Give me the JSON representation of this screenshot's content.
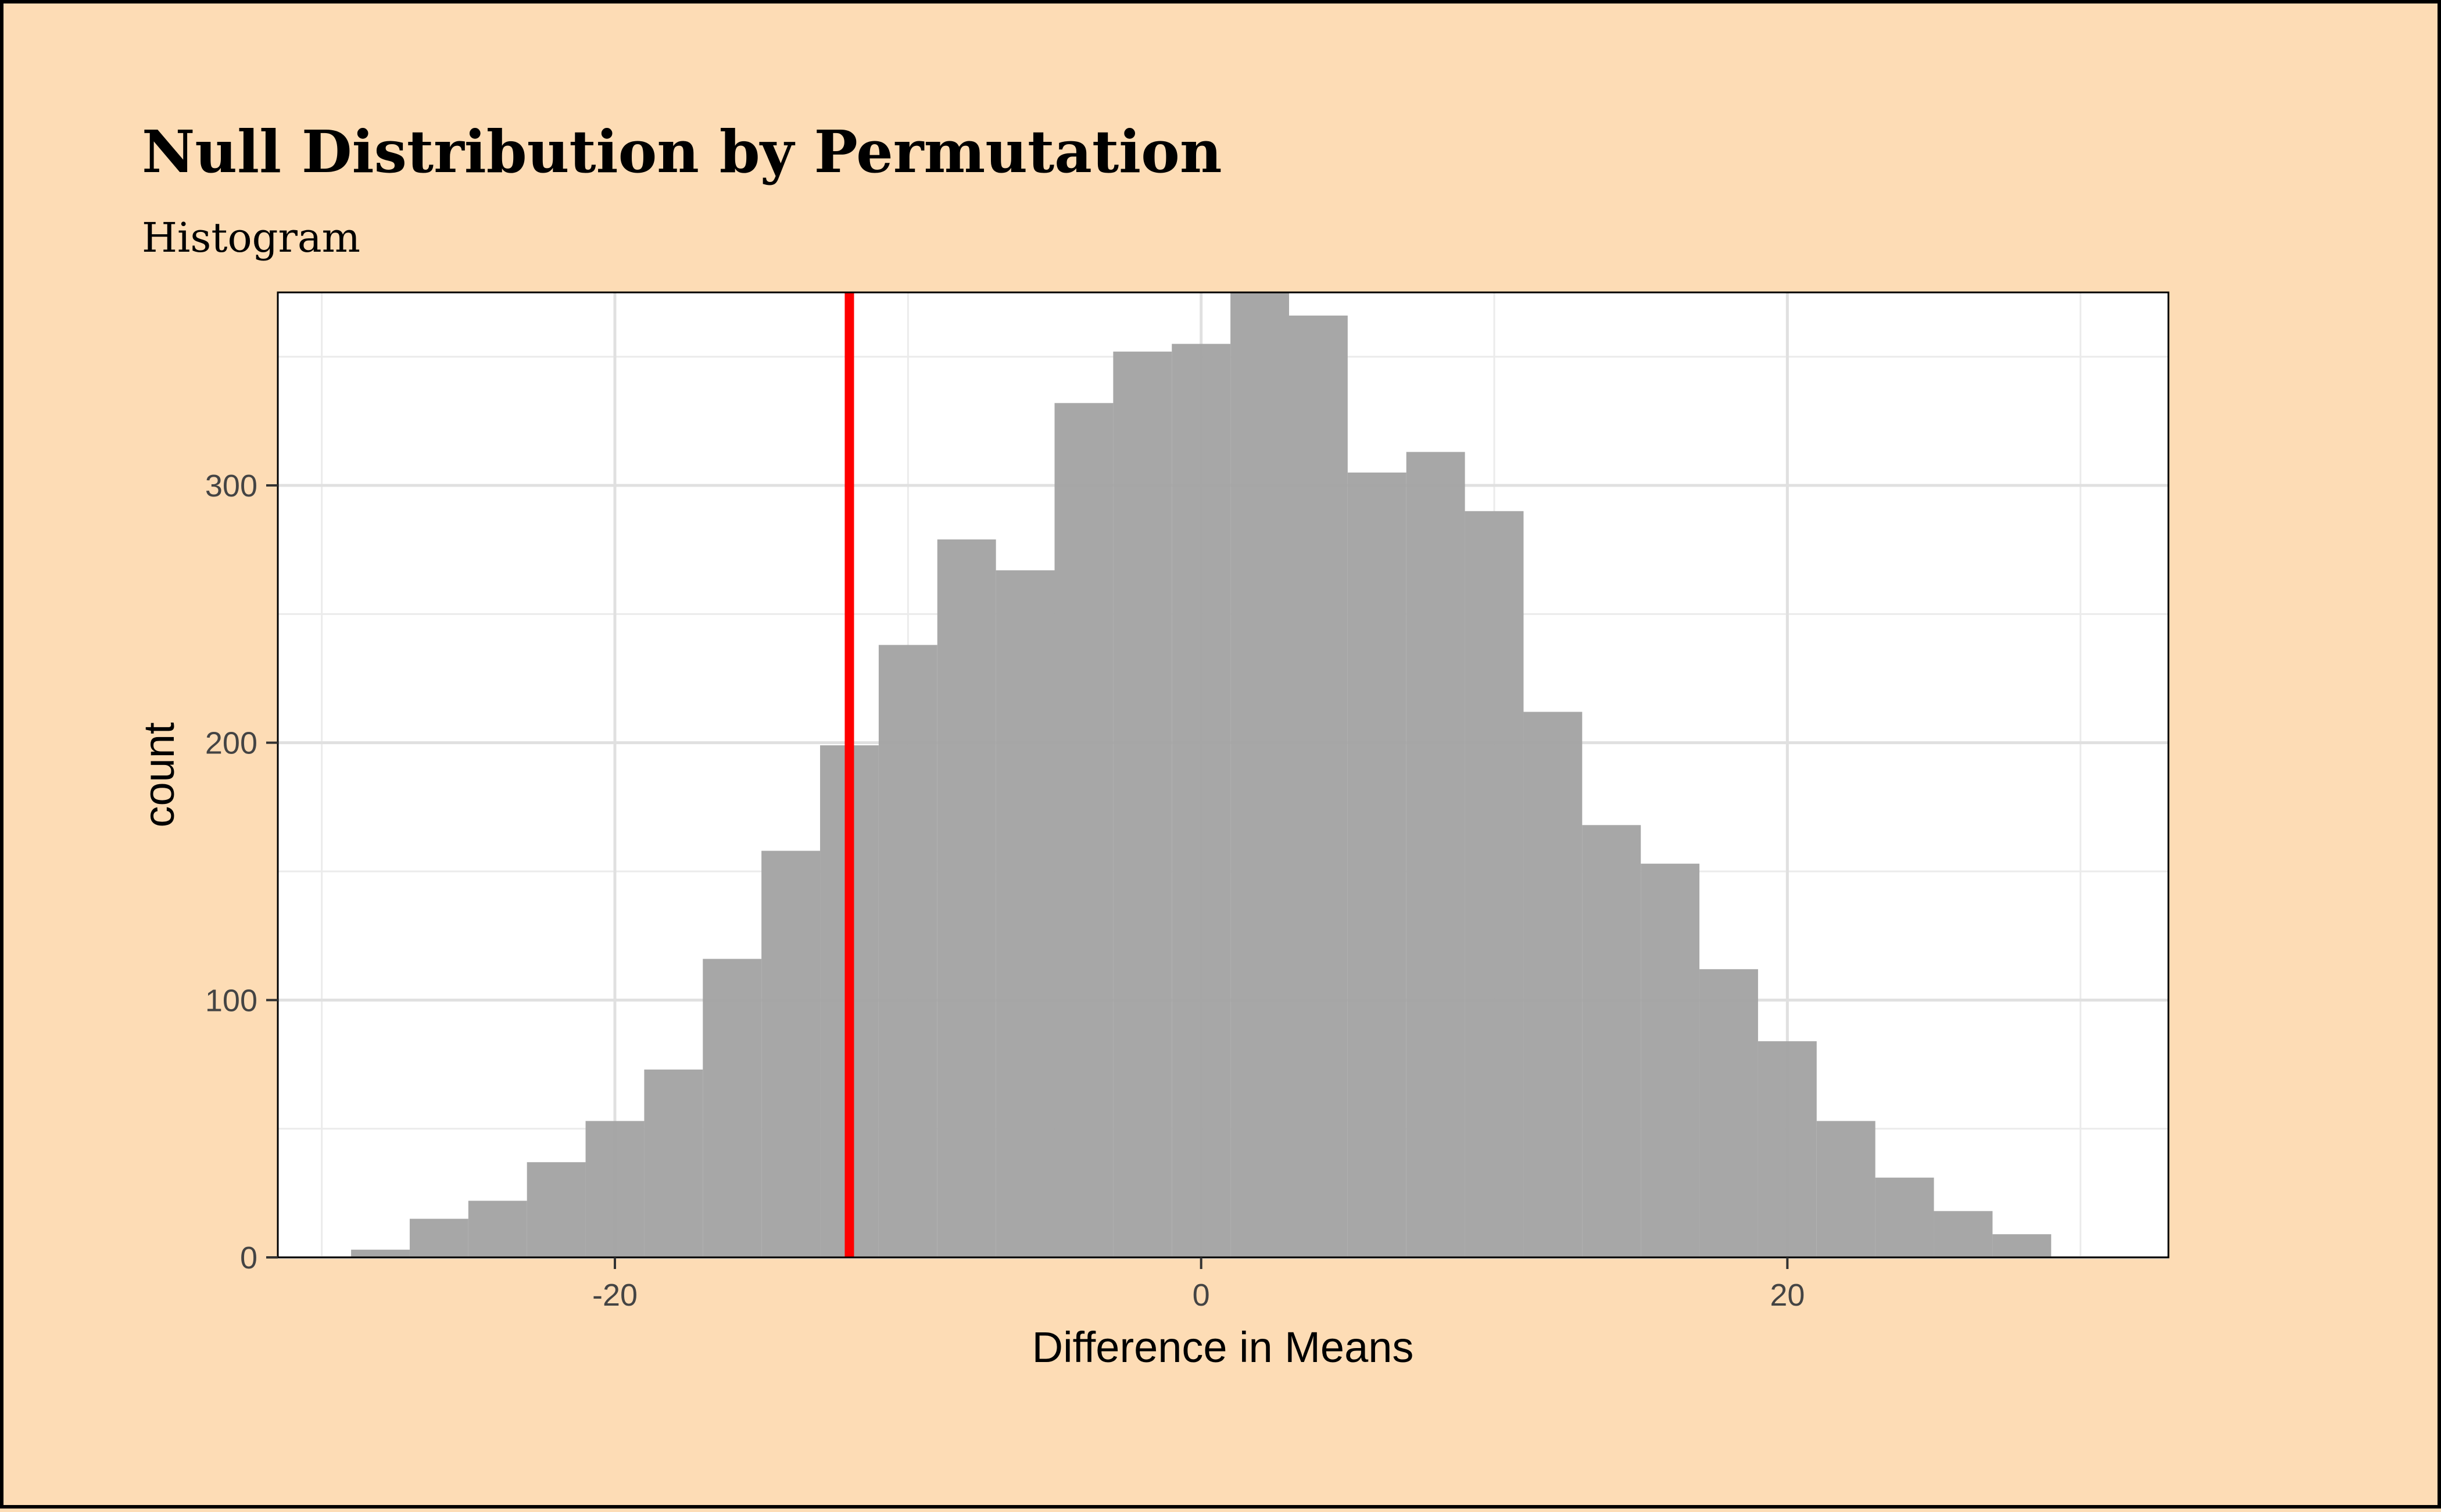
{
  "chart_data": {
    "type": "bar",
    "title": "Null Distribution by Permutation",
    "subtitle": "Histogram",
    "xlabel": "Difference in Means",
    "ylabel": "count",
    "xlim": [
      -31.5,
      33
    ],
    "ylim": [
      0,
      375
    ],
    "x_ticks": [
      -20,
      0,
      20
    ],
    "x_tick_labels": [
      "-20",
      "0",
      "20"
    ],
    "y_ticks": [
      0,
      100,
      200,
      300
    ],
    "y_tick_labels": [
      "0",
      "100",
      "200",
      "300"
    ],
    "grid": true,
    "bin_width": 2,
    "bin_centers": [
      -28,
      -26,
      -24,
      -22,
      -20,
      -18,
      -16,
      -14,
      -12,
      -10,
      -8,
      -6,
      -4,
      -2,
      0,
      2,
      4,
      6,
      8,
      10,
      12,
      14,
      16,
      18,
      20,
      22,
      24,
      26,
      28
    ],
    "values": [
      3,
      15,
      22,
      37,
      53,
      73,
      116,
      158,
      199,
      238,
      279,
      267,
      332,
      352,
      355,
      375,
      366,
      305,
      313,
      290,
      212,
      168,
      153,
      112,
      84,
      53,
      31,
      18,
      9
    ],
    "vline": {
      "x": -12,
      "color": "#ff0000"
    },
    "bar_color": "#a3a3a3"
  }
}
